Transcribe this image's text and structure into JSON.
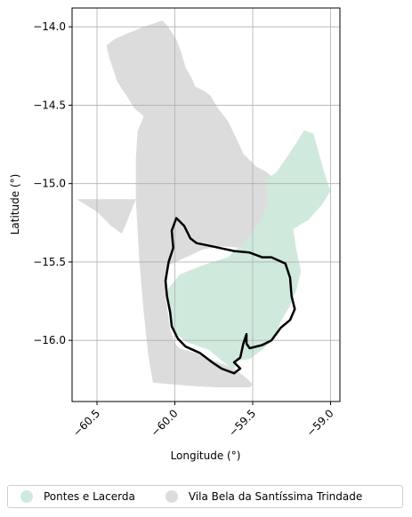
{
  "chart_data": {
    "type": "map",
    "title": "",
    "xlabel": "Longitude (°)",
    "ylabel": "Latitude (°)",
    "xlim": [
      -60.66,
      -58.94
    ],
    "ylim": [
      -16.39,
      -13.88
    ],
    "xticks": [
      -60.5,
      -60.0,
      -59.5,
      -59.0
    ],
    "xtick_labels": [
      "−60.5",
      "−60.0",
      "−59.5",
      "−59.0"
    ],
    "yticks": [
      -14.0,
      -14.5,
      -15.0,
      -15.5,
      -16.0
    ],
    "ytick_labels": [
      "−14.0",
      "−14.5",
      "−15.0",
      "−15.5",
      "−16.0"
    ],
    "grid": true,
    "legend_position": "bottom",
    "regions": [
      {
        "name": "Vila Bela da Santíssima Trindade",
        "color": "#dcdcdc",
        "outline": false,
        "polygon": [
          [
            -60.08,
            -13.96
          ],
          [
            -60.05,
            -13.99
          ],
          [
            -59.99,
            -14.08
          ],
          [
            -59.96,
            -14.16
          ],
          [
            -59.93,
            -14.26
          ],
          [
            -59.89,
            -14.33
          ],
          [
            -59.87,
            -14.38
          ],
          [
            -59.81,
            -14.41
          ],
          [
            -59.77,
            -14.44
          ],
          [
            -59.73,
            -14.51
          ],
          [
            -59.66,
            -14.6
          ],
          [
            -59.62,
            -14.68
          ],
          [
            -59.56,
            -14.81
          ],
          [
            -59.48,
            -14.89
          ],
          [
            -59.42,
            -14.92
          ],
          [
            -59.37,
            -14.96
          ],
          [
            -59.34,
            -15.05
          ],
          [
            -59.3,
            -15.14
          ],
          [
            -59.35,
            -15.22
          ],
          [
            -59.44,
            -15.3
          ],
          [
            -59.51,
            -15.38
          ],
          [
            -59.57,
            -15.41
          ],
          [
            -59.7,
            -15.4
          ],
          [
            -59.82,
            -15.42
          ],
          [
            -59.95,
            -15.48
          ],
          [
            -60.04,
            -15.52
          ],
          [
            -60.06,
            -15.72
          ],
          [
            -60.03,
            -15.93
          ],
          [
            -60.0,
            -16.02
          ],
          [
            -59.97,
            -16.05
          ],
          [
            -59.87,
            -16.08
          ],
          [
            -59.72,
            -16.14
          ],
          [
            -59.62,
            -16.18
          ],
          [
            -59.54,
            -16.24
          ],
          [
            -59.5,
            -16.28
          ],
          [
            -59.52,
            -16.3
          ],
          [
            -59.73,
            -16.3
          ],
          [
            -59.9,
            -16.29
          ],
          [
            -60.14,
            -16.27
          ],
          [
            -60.17,
            -16.1
          ],
          [
            -60.2,
            -15.82
          ],
          [
            -60.23,
            -15.47
          ],
          [
            -60.25,
            -15.1
          ],
          [
            -60.63,
            -15.1
          ],
          [
            -60.5,
            -15.18
          ],
          [
            -60.41,
            -15.27
          ],
          [
            -60.34,
            -15.32
          ],
          [
            -60.25,
            -15.1
          ],
          [
            -60.25,
            -14.84
          ],
          [
            -60.24,
            -14.67
          ],
          [
            -60.2,
            -14.57
          ],
          [
            -60.26,
            -14.52
          ],
          [
            -60.31,
            -14.44
          ],
          [
            -60.37,
            -14.35
          ],
          [
            -60.42,
            -14.2
          ],
          [
            -60.44,
            -14.12
          ],
          [
            -60.39,
            -14.08
          ],
          [
            -60.3,
            -14.04
          ],
          [
            -60.2,
            -14.0
          ],
          [
            -60.08,
            -13.96
          ]
        ]
      },
      {
        "name": "Pontes e Lacerda",
        "color": "#cfeadd",
        "outline": false,
        "polygon": [
          [
            -59.17,
            -14.66
          ],
          [
            -59.11,
            -14.68
          ],
          [
            -59.08,
            -14.79
          ],
          [
            -59.04,
            -14.93
          ],
          [
            -59.0,
            -15.05
          ],
          [
            -59.06,
            -15.14
          ],
          [
            -59.14,
            -15.23
          ],
          [
            -59.24,
            -15.29
          ],
          [
            -59.22,
            -15.42
          ],
          [
            -59.19,
            -15.56
          ],
          [
            -59.22,
            -15.68
          ],
          [
            -59.26,
            -15.78
          ],
          [
            -59.32,
            -15.88
          ],
          [
            -59.36,
            -15.99
          ],
          [
            -59.44,
            -16.06
          ],
          [
            -59.52,
            -16.12
          ],
          [
            -59.6,
            -16.13
          ],
          [
            -59.62,
            -16.19
          ],
          [
            -59.7,
            -16.13
          ],
          [
            -59.78,
            -16.06
          ],
          [
            -59.93,
            -16.01
          ],
          [
            -60.02,
            -15.93
          ],
          [
            -60.04,
            -15.8
          ],
          [
            -60.05,
            -15.68
          ],
          [
            -59.97,
            -15.58
          ],
          [
            -59.82,
            -15.52
          ],
          [
            -59.66,
            -15.47
          ],
          [
            -59.55,
            -15.37
          ],
          [
            -59.45,
            -15.24
          ],
          [
            -59.4,
            -15.12
          ],
          [
            -59.42,
            -14.98
          ],
          [
            -59.35,
            -14.93
          ],
          [
            -59.28,
            -14.83
          ],
          [
            -59.22,
            -14.74
          ],
          [
            -59.17,
            -14.66
          ]
        ]
      }
    ],
    "outline_boundary": {
      "color": "#000000",
      "polygon": [
        [
          -59.99,
          -15.22
        ],
        [
          -59.94,
          -15.27
        ],
        [
          -59.9,
          -15.35
        ],
        [
          -59.86,
          -15.38
        ],
        [
          -59.76,
          -15.4
        ],
        [
          -59.62,
          -15.43
        ],
        [
          -59.52,
          -15.44
        ],
        [
          -59.44,
          -15.47
        ],
        [
          -59.38,
          -15.47
        ],
        [
          -59.29,
          -15.51
        ],
        [
          -59.26,
          -15.6
        ],
        [
          -59.25,
          -15.72
        ],
        [
          -59.23,
          -15.8
        ],
        [
          -59.26,
          -15.87
        ],
        [
          -59.32,
          -15.92
        ],
        [
          -59.38,
          -16.0
        ],
        [
          -59.44,
          -16.03
        ],
        [
          -59.52,
          -16.05
        ],
        [
          -59.54,
          -16.02
        ],
        [
          -59.54,
          -15.96
        ],
        [
          -59.56,
          -16.02
        ],
        [
          -59.58,
          -16.11
        ],
        [
          -59.62,
          -16.14
        ],
        [
          -59.58,
          -16.18
        ],
        [
          -59.62,
          -16.21
        ],
        [
          -59.7,
          -16.18
        ],
        [
          -59.76,
          -16.14
        ],
        [
          -59.84,
          -16.08
        ],
        [
          -59.93,
          -16.04
        ],
        [
          -59.98,
          -15.99
        ],
        [
          -60.02,
          -15.91
        ],
        [
          -60.03,
          -15.82
        ],
        [
          -60.05,
          -15.72
        ],
        [
          -60.06,
          -15.62
        ],
        [
          -60.04,
          -15.5
        ],
        [
          -60.01,
          -15.41
        ],
        [
          -60.02,
          -15.3
        ],
        [
          -59.99,
          -15.22
        ]
      ]
    },
    "legend": [
      "Pontes e Lacerda",
      "Vila Bela da Santíssima Trindade"
    ]
  }
}
